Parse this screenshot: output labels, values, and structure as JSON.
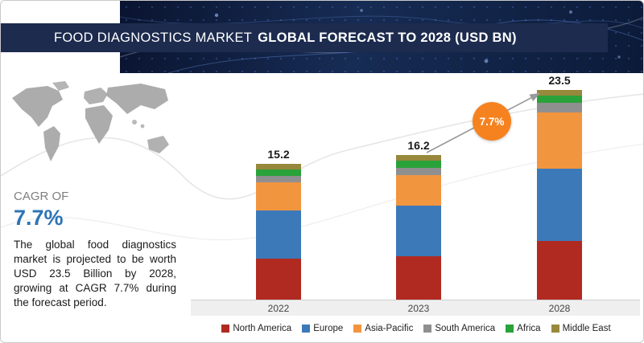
{
  "header": {
    "title_regular": "FOOD DIAGNOSTICS MARKET",
    "title_bold": "GLOBAL FORECAST TO 2028 (USD BN)"
  },
  "sidebar": {
    "cagr_label": "CAGR OF",
    "cagr_value": "7.7%",
    "description": "The global food diagnostics market is projected to be worth USD 23.5 Billion by 2028, growing at CAGR 7.7% during the forecast period."
  },
  "badge": {
    "label": "7.7%",
    "color": "#f6821f"
  },
  "chart_data": {
    "type": "bar",
    "stacked": true,
    "title": "Food Diagnostics Market Global Forecast to 2028 (USD BN)",
    "xlabel": "",
    "ylabel": "",
    "ylim": [
      0,
      26
    ],
    "grid": false,
    "legend_position": "bottom",
    "categories": [
      "2022",
      "2023",
      "2028"
    ],
    "totals": [
      15.2,
      16.2,
      23.5
    ],
    "series": [
      {
        "name": "North America",
        "color": "#b02a21",
        "values": [
          4.6,
          4.9,
          6.6
        ]
      },
      {
        "name": "Europe",
        "color": "#3c79b8",
        "values": [
          5.4,
          5.7,
          8.1
        ]
      },
      {
        "name": "Asia-Pacific",
        "color": "#f2953f",
        "values": [
          3.2,
          3.4,
          6.3
        ]
      },
      {
        "name": "South America",
        "color": "#8f8f8f",
        "values": [
          0.7,
          0.8,
          1.1
        ]
      },
      {
        "name": "Africa",
        "color": "#2aa23a",
        "values": [
          0.7,
          0.8,
          0.8
        ]
      },
      {
        "name": "Middle East",
        "color": "#97883c",
        "values": [
          0.6,
          0.6,
          0.6
        ]
      }
    ],
    "annotations": [
      {
        "text": "7.7%",
        "meaning": "CAGR from 2023 to 2028",
        "shape": "orange-circle"
      }
    ]
  }
}
